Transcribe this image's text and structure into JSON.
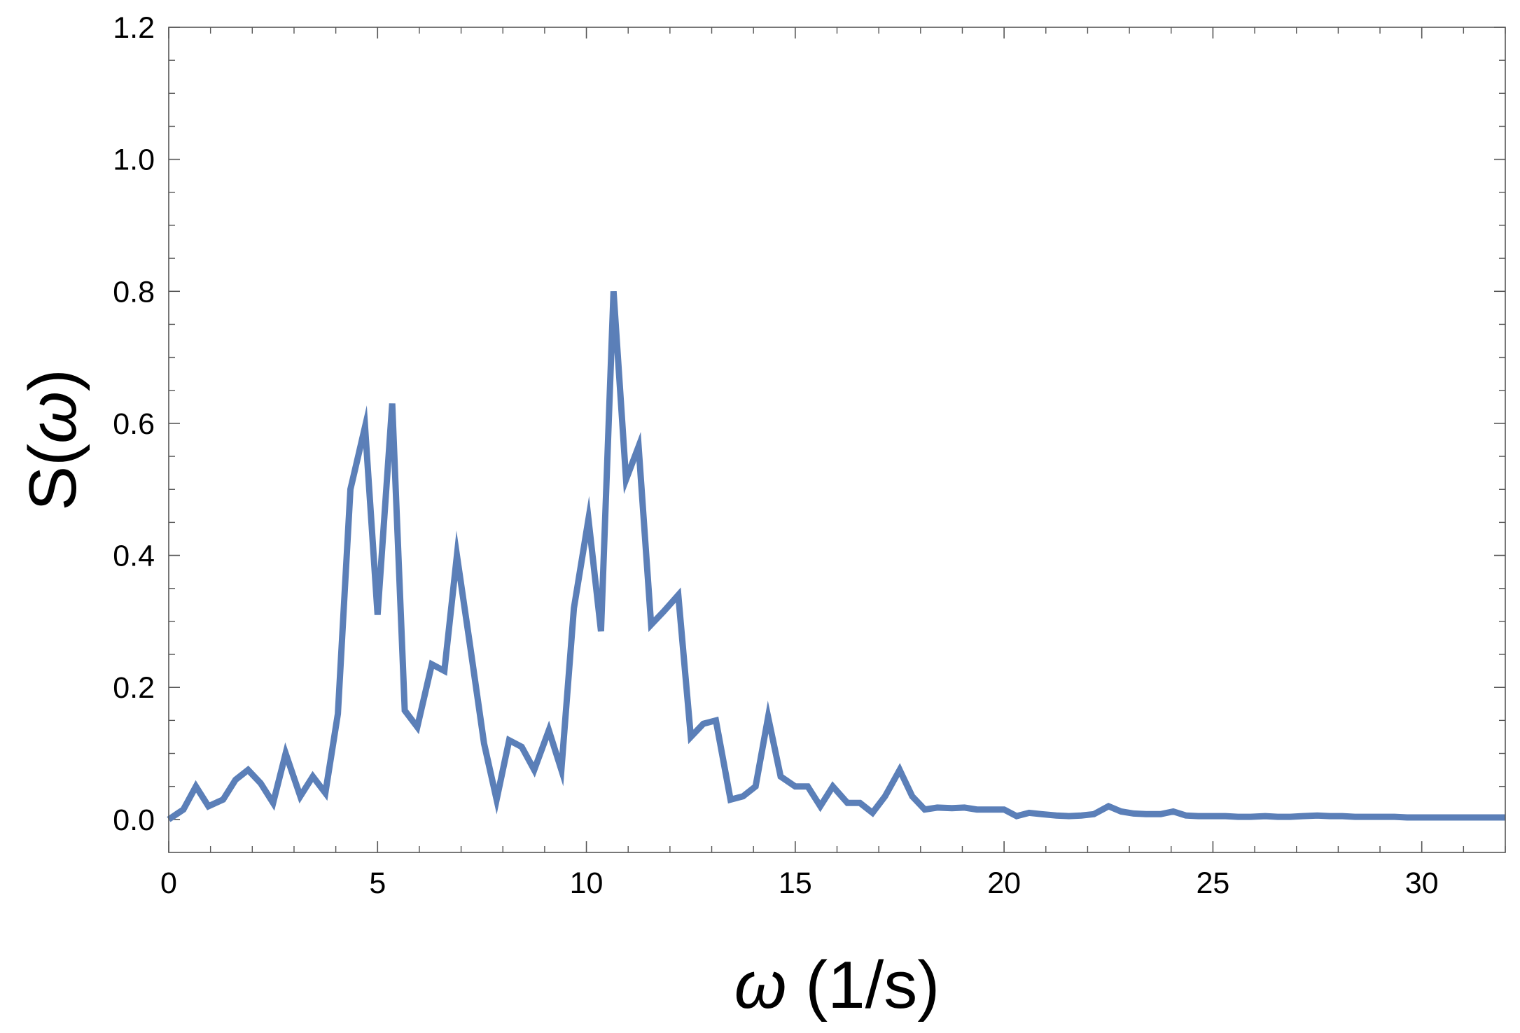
{
  "chart_data": {
    "type": "line",
    "title": "",
    "xlabel_prefix": "ω",
    "xlabel_suffix": " (1/s)",
    "ylabel_prefix": "S(",
    "ylabel_var": "ω",
    "ylabel_suffix": ")",
    "xlim": [
      0,
      32
    ],
    "ylim": [
      -0.05,
      1.2
    ],
    "x_ticks": [
      0,
      5,
      10,
      15,
      20,
      25,
      30
    ],
    "x_tick_labels": [
      "0",
      "5",
      "10",
      "15",
      "20",
      "25",
      "30"
    ],
    "y_ticks": [
      0.0,
      0.2,
      0.4,
      0.6,
      0.8,
      1.0,
      1.2
    ],
    "y_tick_labels": [
      "0.0",
      "0.2",
      "0.4",
      "0.6",
      "0.8",
      "1.0",
      "1.2"
    ],
    "x_minor_step": 1,
    "y_minor_step": 0.05,
    "grid": false,
    "frame": true,
    "series_color": "#5b7fb8",
    "series": [
      {
        "x": [
          0.0,
          0.35,
          0.65,
          0.95,
          1.3,
          1.6,
          1.9,
          2.2,
          2.5,
          2.8,
          3.15,
          3.45,
          3.75,
          4.05,
          4.35,
          4.7,
          5.0,
          5.35,
          5.65,
          5.95,
          6.3,
          6.6,
          6.9,
          7.2,
          7.55,
          7.85,
          8.15,
          8.45,
          8.75,
          9.1,
          9.4,
          9.7,
          10.05,
          10.35,
          10.65,
          10.95,
          11.25,
          11.55,
          11.85,
          12.2,
          12.5,
          12.8,
          13.1,
          13.45,
          13.75,
          14.05,
          14.35,
          14.65,
          15.0,
          15.3,
          15.6,
          15.9,
          16.25,
          16.55,
          16.85,
          17.15,
          17.5,
          17.8,
          18.1,
          18.4,
          18.75,
          19.05,
          19.35,
          19.65,
          20.0,
          20.3,
          20.6,
          20.9,
          21.25,
          21.55,
          21.85,
          22.15,
          22.5,
          22.8,
          23.1,
          23.4,
          23.75,
          24.05,
          24.35,
          24.65,
          25.0,
          25.3,
          25.6,
          25.9,
          26.25,
          26.55,
          26.85,
          27.15,
          27.5,
          27.8,
          28.1,
          28.4,
          28.75,
          29.05,
          29.35,
          29.65,
          30.0,
          30.3,
          30.6,
          30.9,
          31.25,
          31.55,
          31.85,
          32.0
        ],
        "y": [
          0.0,
          0.015,
          0.05,
          0.02,
          0.03,
          0.06,
          0.075,
          0.055,
          0.025,
          0.1,
          0.035,
          0.065,
          0.04,
          0.16,
          0.5,
          0.595,
          0.31,
          0.63,
          0.165,
          0.14,
          0.235,
          0.225,
          0.4,
          0.27,
          0.115,
          0.03,
          0.12,
          0.11,
          0.075,
          0.135,
          0.075,
          0.32,
          0.455,
          0.285,
          0.8,
          0.515,
          0.565,
          0.295,
          0.315,
          0.34,
          0.125,
          0.145,
          0.15,
          0.03,
          0.035,
          0.05,
          0.155,
          0.065,
          0.05,
          0.05,
          0.02,
          0.05,
          0.025,
          0.025,
          0.01,
          0.035,
          0.075,
          0.035,
          0.015,
          0.018,
          0.017,
          0.018,
          0.015,
          0.015,
          0.015,
          0.005,
          0.01,
          0.008,
          0.006,
          0.005,
          0.006,
          0.008,
          0.02,
          0.012,
          0.009,
          0.008,
          0.008,
          0.012,
          0.006,
          0.005,
          0.005,
          0.005,
          0.004,
          0.004,
          0.005,
          0.004,
          0.004,
          0.005,
          0.006,
          0.005,
          0.005,
          0.004,
          0.004,
          0.004,
          0.004,
          0.003,
          0.003,
          0.003,
          0.003,
          0.003,
          0.003,
          0.003,
          0.003,
          0.003
        ]
      }
    ]
  }
}
